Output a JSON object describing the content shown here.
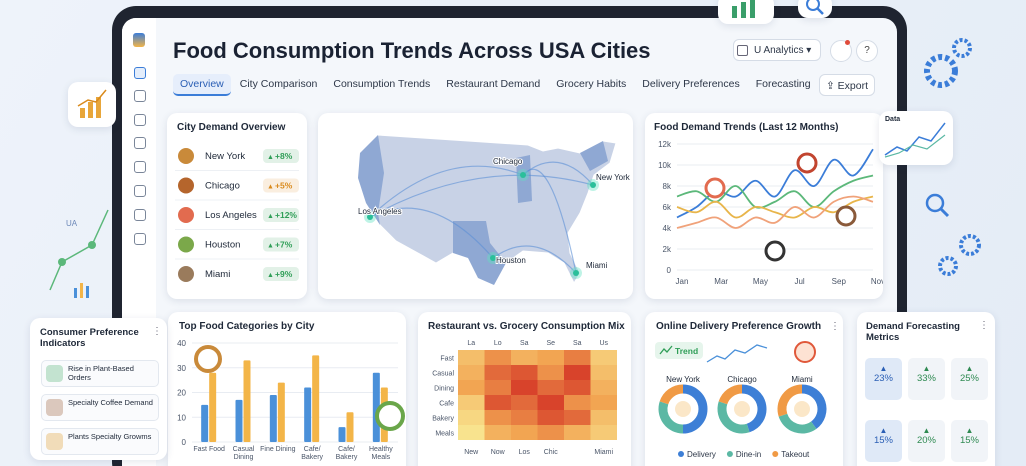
{
  "header": {
    "title": "Food Consumption Trends Across USA Cities",
    "account": "U Analytics",
    "export": "Export"
  },
  "tabs": {
    "items": [
      "Overview",
      "City Comparison",
      "Consumption Trends",
      "Restaurant Demand",
      "Grocery Habits",
      "Delivery Preferences",
      "Forecasting"
    ],
    "active": 0
  },
  "city_demand": {
    "title": "City Demand Overview",
    "rows": [
      {
        "city": "New York",
        "change": "+8%",
        "color": "#2f9e57"
      },
      {
        "city": "Chicago",
        "change": "+5%",
        "color": "#d98a1c"
      },
      {
        "city": "Los Angeles",
        "change": "+12%",
        "color": "#2f9e57"
      },
      {
        "city": "Houston",
        "change": "+7%",
        "color": "#2f9e57"
      },
      {
        "city": "Miami",
        "change": "+9%",
        "color": "#2f9e57"
      }
    ]
  },
  "map": {
    "cities": [
      "Chicago",
      "New York",
      "Los Angeles",
      "Houston",
      "Miami"
    ]
  },
  "consumer": {
    "title": "Consumer Preference Indicators",
    "items": [
      "Rise in Plant-Based Orders",
      "Specialty Coffee Demand",
      "Plants Specialty Growms"
    ]
  },
  "forecast": {
    "title": "Demand Forecasting Metrics",
    "tiles": [
      "23%",
      "33%",
      "25%",
      "15%",
      "20%",
      "15%"
    ]
  },
  "decor": {
    "ua": "UA",
    "data": "Data"
  },
  "chart_data": [
    {
      "type": "line",
      "title": "Food Demand Trends (Last 12 Months)",
      "categories": [
        "Jan",
        null,
        "Mar",
        null,
        "May",
        null,
        "Jul",
        null,
        "Sep",
        null,
        "Nov"
      ],
      "ylim": [
        0,
        12000
      ],
      "yticks": [
        0,
        {
          "value": 2000,
          "label": "2k"
        },
        {
          "value": 4000,
          "label": "4k"
        },
        {
          "value": 6000,
          "label": "6k"
        },
        {
          "value": 8000,
          "label": "8k"
        },
        {
          "value": 10000,
          "label": "10k"
        },
        {
          "value": 12000,
          "label": "12k"
        }
      ],
      "grid": true,
      "series": [
        {
          "color": "#3b7dd8",
          "values": [
            5000,
            6000,
            7500,
            7000,
            8500,
            7000,
            9500,
            8000,
            10500,
            9000,
            11500
          ]
        },
        {
          "color": "#5cb87a",
          "values": [
            7000,
            7500,
            6500,
            8000,
            6000,
            6500,
            7500,
            6000,
            7500,
            8500,
            9000
          ]
        },
        {
          "color": "#e8b54a",
          "values": [
            6000,
            5500,
            6500,
            5000,
            6000,
            5500,
            5000,
            6000,
            5500,
            6500,
            7000
          ]
        },
        {
          "color": "#f0a27a",
          "values": [
            4000,
            4500,
            5000,
            4000,
            5000,
            4500,
            6000,
            5000,
            6500,
            7000,
            6500
          ]
        }
      ]
    },
    {
      "type": "bar",
      "title": "Top Food Categories by City",
      "categories": [
        "Fast Food",
        "Casual Dining",
        "Fine Dining",
        "Cafe/ Bakery",
        "Cafe/ Bakery",
        "Healthy Meals"
      ],
      "ylim": [
        0,
        40
      ],
      "yticks": [
        0,
        10,
        20,
        30,
        40
      ],
      "grid": true,
      "series": [
        {
          "color": "#4a90d9",
          "values": [
            15,
            17,
            19,
            22,
            6,
            28
          ]
        },
        {
          "color": "#f3b548",
          "values": [
            28,
            33,
            24,
            35,
            12,
            22
          ]
        }
      ]
    },
    {
      "type": "heatmap",
      "title": "Restaurant vs. Grocery Consumption Mix",
      "rows": [
        "Fast",
        "Casual",
        "Dining",
        "Cafe",
        "Bakery",
        "Meals"
      ],
      "top_labels": [
        "La",
        "Lo",
        "Sa",
        "Se",
        "Sa",
        "Us"
      ],
      "categories": [
        "New",
        "Now",
        "Los",
        "Chic",
        null,
        "Miami"
      ],
      "colors": [
        "#f8e38e",
        "#f2a552",
        "#d8432b"
      ],
      "values": [
        [
          55,
          70,
          60,
          65,
          75,
          50
        ],
        [
          60,
          80,
          85,
          70,
          90,
          55
        ],
        [
          65,
          75,
          90,
          80,
          85,
          60
        ],
        [
          50,
          85,
          80,
          90,
          70,
          65
        ],
        [
          45,
          70,
          75,
          85,
          80,
          55
        ],
        [
          40,
          60,
          65,
          70,
          60,
          50
        ]
      ]
    },
    {
      "type": "donut",
      "title": "Online Delivery Preference Growth",
      "badge": "Trend",
      "labels": [
        "Delivery",
        "Dine-in",
        "Takeout"
      ],
      "colors": [
        "#3d7fd6",
        "#5bb8a4",
        "#f09a45"
      ],
      "groups": [
        {
          "name": "New York",
          "values": [
            50,
            30,
            20
          ]
        },
        {
          "name": "Chicago",
          "values": [
            45,
            35,
            20
          ]
        },
        {
          "name": "Miami",
          "values": [
            40,
            30,
            30
          ]
        }
      ]
    }
  ]
}
